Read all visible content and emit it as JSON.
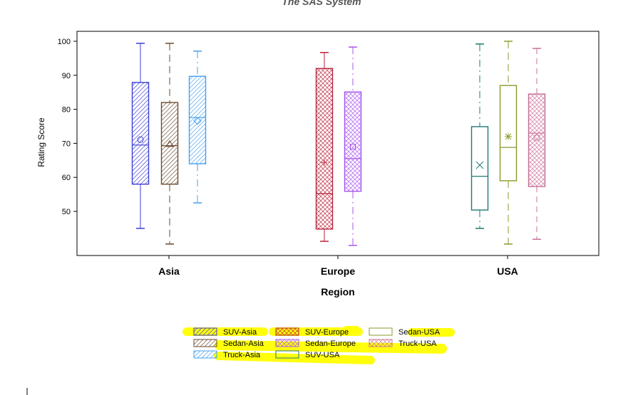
{
  "title": "The SAS System",
  "chart_data": {
    "type": "box",
    "xlabel": "Region",
    "ylabel": "Rating Score",
    "ylim": [
      37,
      103
    ],
    "yticks": [
      50,
      60,
      70,
      80,
      90,
      100
    ],
    "categories": [
      "Asia",
      "Europe",
      "USA"
    ],
    "grid": false,
    "legend_position": "bottom",
    "series": [
      {
        "name": "SUV-Asia",
        "category": "Asia",
        "min": 45,
        "q1": 58,
        "median": 69.5,
        "mean": 71.1,
        "q3": 87.9,
        "max": 99.4,
        "color": "#3d3dd8",
        "fill": "hatch",
        "mean_marker": "circle"
      },
      {
        "name": "Sedan-Asia",
        "category": "Asia",
        "min": 40.4,
        "q1": 58,
        "median": 69.3,
        "mean": 69.7,
        "q3": 82,
        "max": 99.4,
        "color": "#6b4a2e",
        "fill": "hatch",
        "mean_marker": "triangle"
      },
      {
        "name": "Truck-Asia",
        "category": "Asia",
        "min": 52.5,
        "q1": 64,
        "median": 77.6,
        "mean": 76.6,
        "q3": 89.7,
        "max": 97.1,
        "color": "#45a0ee",
        "fill": "hatch",
        "mean_marker": "diamond"
      },
      {
        "name": "SUV-Europe",
        "category": "Europe",
        "min": 41.2,
        "q1": 44.8,
        "median": 55.2,
        "mean": 64.4,
        "q3": 92,
        "max": 96.7,
        "color": "#b82238",
        "fill": "crosshatch",
        "mean_marker": "plus"
      },
      {
        "name": "Sedan-Europe",
        "category": "Europe",
        "min": 40,
        "q1": 55.9,
        "median": 65.5,
        "mean": 69,
        "q3": 85.1,
        "max": 98.3,
        "color": "#a855ee",
        "fill": "crosshatch",
        "mean_marker": "square"
      },
      {
        "name": "SUV-USA",
        "category": "USA",
        "min": 45,
        "q1": 50.4,
        "median": 60.3,
        "mean": 63.6,
        "q3": 74.9,
        "max": 99.2,
        "color": "#1f7a70",
        "fill": "none",
        "mean_marker": "x"
      },
      {
        "name": "Sedan-USA",
        "category": "USA",
        "min": 40.4,
        "q1": 59,
        "median": 68.8,
        "mean": 72,
        "q3": 87,
        "max": 100,
        "color": "#8a9a2a",
        "fill": "none",
        "mean_marker": "star"
      },
      {
        "name": "Truck-USA",
        "category": "USA",
        "min": 41.8,
        "q1": 57.3,
        "median": 73,
        "mean": 71.7,
        "q3": 84.5,
        "max": 97.9,
        "color": "#c87098",
        "fill": "crosshatch",
        "mean_marker": "circle"
      }
    ]
  },
  "highlight_color": "#ffff00"
}
